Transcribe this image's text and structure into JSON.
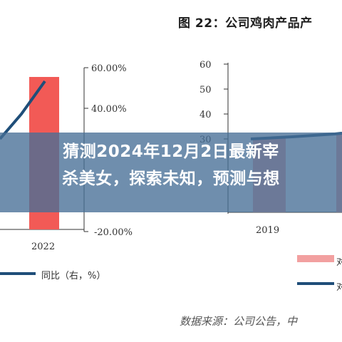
{
  "figure": {
    "title": "图 22：公司鸡肉产品产",
    "source": "数据来源：公司公告，中"
  },
  "banner": {
    "line1": "猜测2024年12月2日最新宰",
    "line2": "杀美女，探索未知，预测与想"
  },
  "legend": {
    "left_label": "同比（右，%）",
    "right_label_1": "对",
    "right_label_2": "对"
  },
  "colors": {
    "bar": "#f25a56",
    "bar_right": "#f2a0a0",
    "line": "#1f4e79",
    "banner": "#466e96"
  },
  "chart_data": [
    {
      "type": "bar",
      "categories": [
        "2022"
      ],
      "y2_ticks": [
        "60.00%",
        "40.00%",
        "-20.00%"
      ],
      "series": [
        {
          "name": "同比（右，%）",
          "type": "line",
          "axis": "right",
          "values": [
            0.52
          ]
        }
      ]
    },
    {
      "type": "bar",
      "categories": [
        "2019"
      ],
      "y_ticks": [
        "60",
        "50",
        "40",
        "30"
      ],
      "ylim": [
        0,
        60
      ]
    }
  ]
}
